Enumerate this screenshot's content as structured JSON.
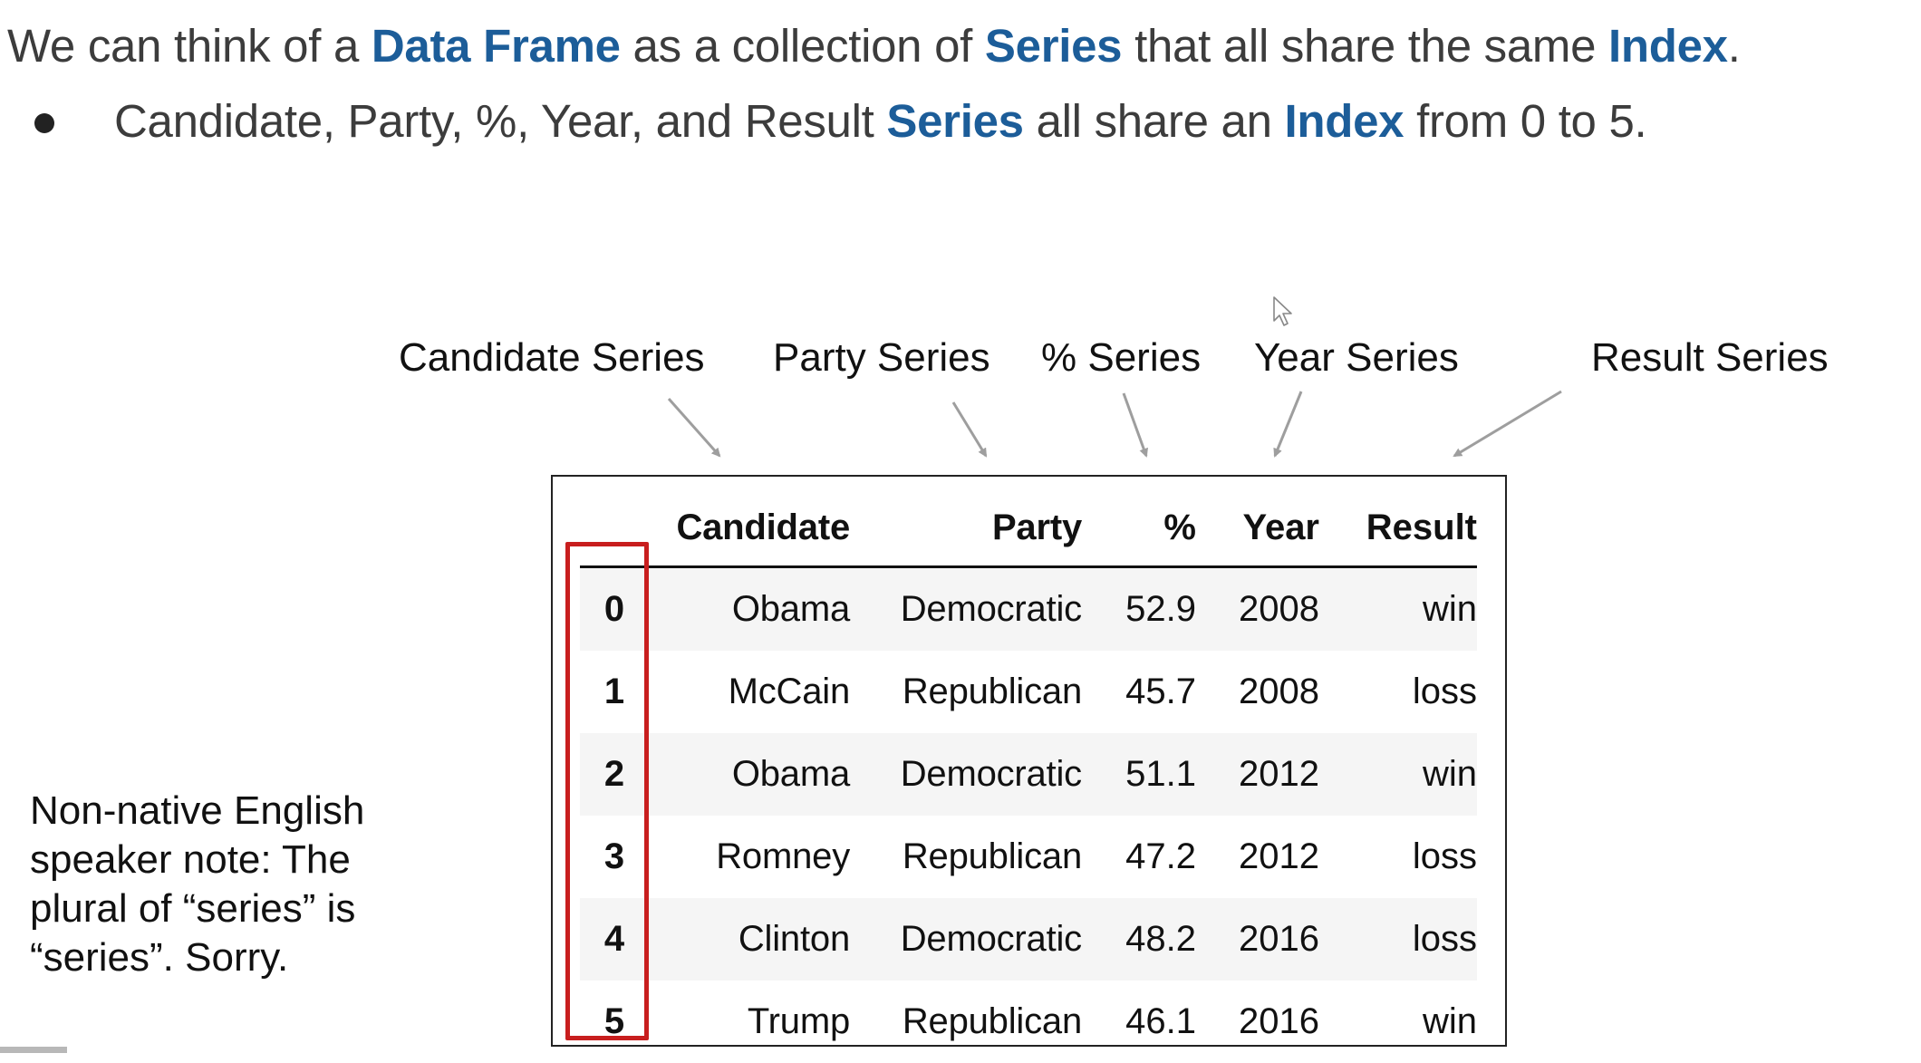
{
  "headline": {
    "parts": [
      "We can think of a ",
      "Data Frame",
      " as a collection of ",
      "Series",
      " that all share the same ",
      "Index",
      "."
    ]
  },
  "bullet": {
    "parts": [
      "Candidate, Party, %, Year, and Result ",
      "Series",
      " all share an ",
      "Index",
      " from  0 to 5."
    ]
  },
  "series_labels": {
    "candidate": "Candidate Series",
    "party": "Party Series",
    "percent": "% Series",
    "year": "Year Series",
    "result": "Result Series"
  },
  "table": {
    "columns": [
      "",
      "Candidate",
      "Party",
      "%",
      "Year",
      "Result"
    ],
    "rows": [
      [
        "0",
        "Obama",
        "Democratic",
        "52.9",
        "2008",
        "win"
      ],
      [
        "1",
        "McCain",
        "Republican",
        "45.7",
        "2008",
        "loss"
      ],
      [
        "2",
        "Obama",
        "Democratic",
        "51.1",
        "2012",
        "win"
      ],
      [
        "3",
        "Romney",
        "Republican",
        "47.2",
        "2012",
        "loss"
      ],
      [
        "4",
        "Clinton",
        "Democratic",
        "48.2",
        "2016",
        "loss"
      ],
      [
        "5",
        "Trump",
        "Republican",
        "46.1",
        "2016",
        "win"
      ]
    ]
  },
  "note": {
    "text": "Non-native English\nspeaker note: The\nplural of “series” is\n“series”. Sorry."
  },
  "colors": {
    "highlight": "#1c5d99",
    "index_box": "#c81e1e",
    "arrow": "#9e9e9e"
  },
  "icons": {
    "cursor": "mouse-pointer-icon"
  }
}
